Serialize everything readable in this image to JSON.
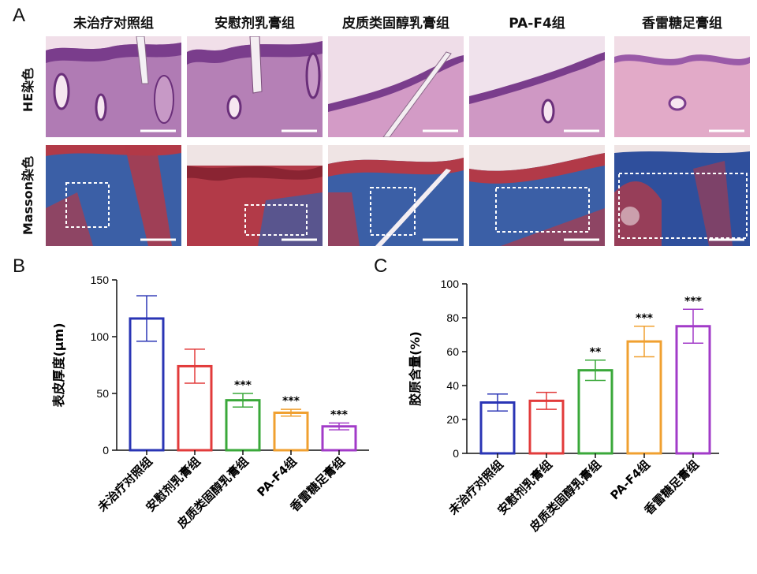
{
  "panels": {
    "a": "A",
    "b": "B",
    "c": "C"
  },
  "groups": [
    "未治疗对照组",
    "安慰剂乳膏组",
    "皮质类固醇乳膏组",
    "PA-F4组",
    "香雷糖足膏组"
  ],
  "row_labels": [
    "HE染色",
    "Masson染色"
  ],
  "colors": {
    "he_bg": "#f1dfe9",
    "he_tissue": "#b07bb4",
    "he_epidermis": "#7a3d8c",
    "masson_tissue": "#3b5fa6",
    "masson_red": "#b23a48",
    "masson_bg": "#efe4e4"
  },
  "chart_data": [
    {
      "type": "bar",
      "title": "",
      "xlabel": "",
      "ylabel": "表皮厚度(μm)",
      "categories": [
        "未治疗对照组",
        "安慰剂乳膏组",
        "皮质类固醇乳膏组",
        "PA-F4组",
        "香雷糖足膏组"
      ],
      "values": [
        116,
        74,
        44,
        33,
        21
      ],
      "errors": [
        20,
        15,
        6,
        3,
        3
      ],
      "significance": [
        "",
        "",
        "***",
        "***",
        "***"
      ],
      "ylim": [
        0,
        150
      ],
      "yticks": [
        0,
        50,
        100,
        150
      ],
      "colors": [
        "#2a35b5",
        "#e23b3b",
        "#3aa83a",
        "#f0a030",
        "#a23bc8"
      ]
    },
    {
      "type": "bar",
      "title": "",
      "xlabel": "",
      "ylabel": "胶原含量(%)",
      "categories": [
        "未治疗对照组",
        "安慰剂乳膏组",
        "皮质类固醇乳膏组",
        "PA-F4组",
        "香雷糖足膏组"
      ],
      "values": [
        30,
        31,
        49,
        66,
        75
      ],
      "errors": [
        5,
        5,
        6,
        9,
        10
      ],
      "significance": [
        "",
        "",
        "**",
        "***",
        "***"
      ],
      "ylim": [
        0,
        100
      ],
      "yticks": [
        0,
        20,
        40,
        60,
        80,
        100
      ],
      "colors": [
        "#2a35b5",
        "#e23b3b",
        "#3aa83a",
        "#f0a030",
        "#a23bc8"
      ]
    }
  ]
}
